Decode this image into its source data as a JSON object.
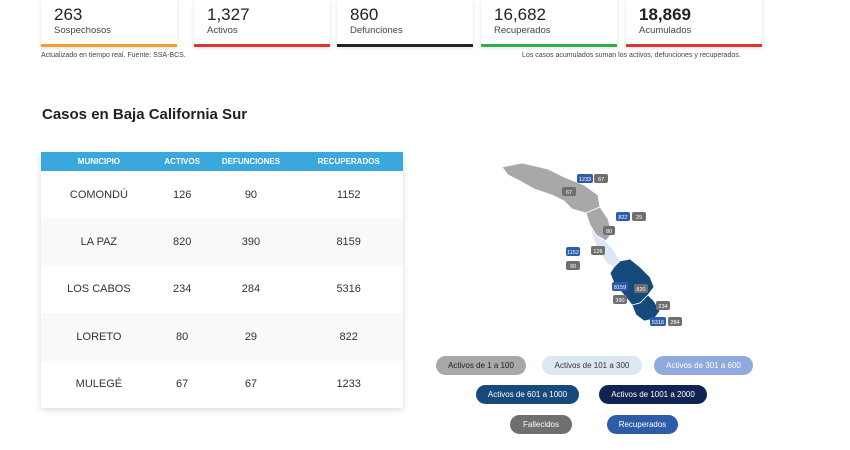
{
  "stats": [
    {
      "value": "263",
      "label": "Sospechosos",
      "color": "#f39c33"
    },
    {
      "value": "1,327",
      "label": "Activos",
      "color": "#e0322f"
    },
    {
      "value": "860",
      "label": "Defunciones",
      "color": "#222222"
    },
    {
      "value": "16,682",
      "label": "Recuperados",
      "color": "#2fae4a"
    },
    {
      "value": "18,869",
      "label": "Acumulados",
      "color": "#e0322f"
    }
  ],
  "notes": {
    "left": "Actualizado en tiempo real. Fuente: SSA-BCS.",
    "right": "Los casos acumulados suman los activos, defunciones y recuperados."
  },
  "section_title": "Casos en Baja California Sur",
  "table": {
    "headers": [
      "MUNICIPIO",
      "ACTIVOS",
      "DEFUNCIONES",
      "RECUPERADOS"
    ],
    "rows": [
      [
        "COMONDÚ",
        "126",
        "90",
        "1152"
      ],
      [
        "LA PAZ",
        "820",
        "390",
        "8159"
      ],
      [
        "LOS CABOS",
        "234",
        "284",
        "5316"
      ],
      [
        "LORETO",
        "80",
        "29",
        "822"
      ],
      [
        "MULEGÉ",
        "67",
        "67",
        "1233"
      ]
    ]
  },
  "map_badges": {
    "mulege": {
      "activos": "67",
      "recuperados": "1233",
      "defunciones": "67"
    },
    "loreto": {
      "activos": "80",
      "recuperados": "822",
      "defunciones": "29"
    },
    "comondu": {
      "activos": "126",
      "recuperados": "1152",
      "defunciones": "90"
    },
    "lapaz": {
      "activos": "820",
      "recuperados": "8159",
      "defunciones": "390"
    },
    "loscabos": {
      "activos": "234",
      "recuperados": "5316",
      "defunciones": "284"
    }
  },
  "colors": {
    "header_blue": "#3aa8dc",
    "gray_region": "#a8a8a8",
    "light_region": "#dde7f4",
    "navy_region": "#154a7b",
    "recuperados_badge": "#2d5ca8",
    "fallecidos_badge": "#6f6f6f"
  },
  "legend": [
    {
      "label": "Activos de 1 a 100",
      "bg": "#a8a8a8",
      "fg": "#222222"
    },
    {
      "label": "Activos de 101 a 300",
      "bg": "#dde7f4",
      "fg": "#333333"
    },
    {
      "label": "Activos de 301 a 600",
      "bg": "#8faadc",
      "fg": "#ffffff"
    },
    {
      "label": "Activos de 601 a 1000",
      "bg": "#154a7b",
      "fg": "#ffffff"
    },
    {
      "label": "Activos de 1001 a 2000",
      "bg": "#0f2452",
      "fg": "#ffffff"
    },
    {
      "label": "Fallecidos",
      "bg": "#6f6f6f",
      "fg": "#ffffff"
    },
    {
      "label": "Recuperados",
      "bg": "#2d5ca8",
      "fg": "#ffffff"
    }
  ]
}
